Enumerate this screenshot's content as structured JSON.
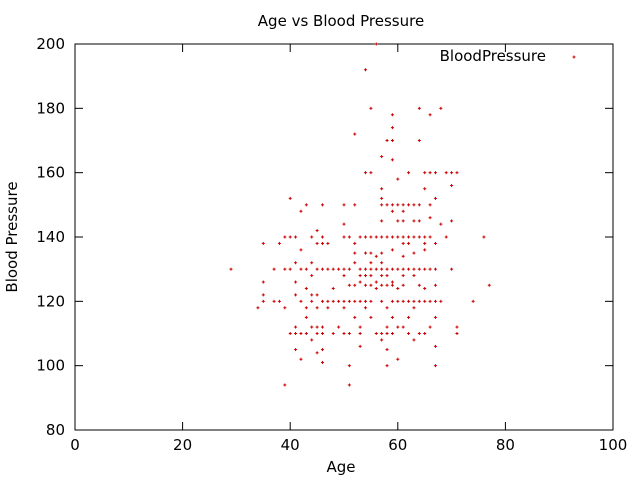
{
  "chart_data": {
    "type": "scatter",
    "title": "Age vs Blood Pressure",
    "xlabel": "Age",
    "ylabel": "Blood Pressure",
    "xlim": [
      0,
      100
    ],
    "ylim": [
      80,
      200
    ],
    "xticks": [
      0,
      20,
      40,
      60,
      80,
      100
    ],
    "yticks": [
      80,
      100,
      120,
      140,
      160,
      180,
      200
    ],
    "grid": false,
    "legend": "top-right",
    "marker_color": "#cc0000",
    "series": [
      {
        "name": "BloodPressure",
        "points": [
          [
            29,
            130
          ],
          [
            34,
            118
          ],
          [
            35,
            122
          ],
          [
            35,
            120
          ],
          [
            35,
            126
          ],
          [
            35,
            138
          ],
          [
            37,
            130
          ],
          [
            37,
            120
          ],
          [
            38,
            120
          ],
          [
            38,
            138
          ],
          [
            39,
            140
          ],
          [
            39,
            94
          ],
          [
            39,
            118
          ],
          [
            39,
            130
          ],
          [
            40,
            152
          ],
          [
            40,
            140
          ],
          [
            40,
            130
          ],
          [
            40,
            110
          ],
          [
            41,
            132
          ],
          [
            41,
            126
          ],
          [
            41,
            122
          ],
          [
            41,
            112
          ],
          [
            41,
            110
          ],
          [
            41,
            105
          ],
          [
            41,
            140
          ],
          [
            42,
            148
          ],
          [
            42,
            136
          ],
          [
            42,
            130
          ],
          [
            42,
            120
          ],
          [
            42,
            110
          ],
          [
            42,
            102
          ],
          [
            43,
            150
          ],
          [
            43,
            130
          ],
          [
            43,
            124
          ],
          [
            43,
            118
          ],
          [
            43,
            115
          ],
          [
            43,
            110
          ],
          [
            44,
            140
          ],
          [
            44,
            132
          ],
          [
            44,
            128
          ],
          [
            44,
            122
          ],
          [
            44,
            120
          ],
          [
            44,
            112
          ],
          [
            44,
            108
          ],
          [
            45,
            142
          ],
          [
            45,
            138
          ],
          [
            45,
            130
          ],
          [
            45,
            122
          ],
          [
            45,
            118
          ],
          [
            45,
            112
          ],
          [
            45,
            110
          ],
          [
            45,
            104
          ],
          [
            46,
            150
          ],
          [
            46,
            140
          ],
          [
            46,
            138
          ],
          [
            46,
            130
          ],
          [
            46,
            120
          ],
          [
            46,
            112
          ],
          [
            46,
            110
          ],
          [
            46,
            105
          ],
          [
            46,
            101
          ],
          [
            47,
            138
          ],
          [
            47,
            130
          ],
          [
            47,
            120
          ],
          [
            47,
            118
          ],
          [
            48,
            130
          ],
          [
            48,
            124
          ],
          [
            48,
            120
          ],
          [
            48,
            110
          ],
          [
            49,
            130
          ],
          [
            49,
            120
          ],
          [
            49,
            112
          ],
          [
            50,
            150
          ],
          [
            50,
            144
          ],
          [
            50,
            140
          ],
          [
            50,
            130
          ],
          [
            50,
            128
          ],
          [
            50,
            120
          ],
          [
            50,
            118
          ],
          [
            50,
            110
          ],
          [
            51,
            140
          ],
          [
            51,
            130
          ],
          [
            51,
            125
          ],
          [
            51,
            120
          ],
          [
            51,
            110
          ],
          [
            51,
            100
          ],
          [
            51,
            94
          ],
          [
            52,
            172
          ],
          [
            52,
            150
          ],
          [
            52,
            138
          ],
          [
            52,
            135
          ],
          [
            52,
            132
          ],
          [
            52,
            125
          ],
          [
            52,
            120
          ],
          [
            52,
            115
          ],
          [
            53,
            140
          ],
          [
            53,
            130
          ],
          [
            53,
            128
          ],
          [
            53,
            126
          ],
          [
            53,
            120
          ],
          [
            53,
            112
          ],
          [
            53,
            110
          ],
          [
            53,
            106
          ],
          [
            54,
            192
          ],
          [
            54,
            160
          ],
          [
            54,
            140
          ],
          [
            54,
            135
          ],
          [
            54,
            130
          ],
          [
            54,
            128
          ],
          [
            54,
            125
          ],
          [
            54,
            120
          ],
          [
            54,
            118
          ],
          [
            55,
            180
          ],
          [
            55,
            160
          ],
          [
            55,
            140
          ],
          [
            55,
            135
          ],
          [
            55,
            132
          ],
          [
            55,
            130
          ],
          [
            55,
            128
          ],
          [
            55,
            125
          ],
          [
            55,
            120
          ],
          [
            55,
            115
          ],
          [
            56,
            200
          ],
          [
            56,
            140
          ],
          [
            56,
            134
          ],
          [
            56,
            130
          ],
          [
            56,
            126
          ],
          [
            56,
            124
          ],
          [
            56,
            110
          ],
          [
            57,
            165
          ],
          [
            57,
            155
          ],
          [
            57,
            152
          ],
          [
            57,
            150
          ],
          [
            57,
            145
          ],
          [
            57,
            140
          ],
          [
            57,
            135
          ],
          [
            57,
            132
          ],
          [
            57,
            130
          ],
          [
            57,
            128
          ],
          [
            57,
            125
          ],
          [
            57,
            120
          ],
          [
            57,
            110
          ],
          [
            57,
            108
          ],
          [
            58,
            170
          ],
          [
            58,
            150
          ],
          [
            58,
            140
          ],
          [
            58,
            130
          ],
          [
            58,
            128
          ],
          [
            58,
            125
          ],
          [
            58,
            118
          ],
          [
            58,
            112
          ],
          [
            58,
            110
          ],
          [
            58,
            105
          ],
          [
            58,
            100
          ],
          [
            59,
            178
          ],
          [
            59,
            174
          ],
          [
            59,
            170
          ],
          [
            59,
            164
          ],
          [
            59,
            150
          ],
          [
            59,
            148
          ],
          [
            59,
            140
          ],
          [
            59,
            136
          ],
          [
            59,
            130
          ],
          [
            59,
            126
          ],
          [
            59,
            125
          ],
          [
            59,
            120
          ],
          [
            59,
            115
          ],
          [
            59,
            110
          ],
          [
            60,
            158
          ],
          [
            60,
            150
          ],
          [
            60,
            145
          ],
          [
            60,
            140
          ],
          [
            60,
            130
          ],
          [
            60,
            124
          ],
          [
            60,
            120
          ],
          [
            60,
            112
          ],
          [
            60,
            102
          ],
          [
            61,
            150
          ],
          [
            61,
            148
          ],
          [
            61,
            145
          ],
          [
            61,
            140
          ],
          [
            61,
            138
          ],
          [
            61,
            134
          ],
          [
            61,
            130
          ],
          [
            61,
            128
          ],
          [
            61,
            125
          ],
          [
            61,
            120
          ],
          [
            61,
            112
          ],
          [
            62,
            160
          ],
          [
            62,
            150
          ],
          [
            62,
            140
          ],
          [
            62,
            138
          ],
          [
            62,
            130
          ],
          [
            62,
            120
          ],
          [
            62,
            115
          ],
          [
            62,
            110
          ],
          [
            63,
            150
          ],
          [
            63,
            145
          ],
          [
            63,
            140
          ],
          [
            63,
            135
          ],
          [
            63,
            130
          ],
          [
            63,
            128
          ],
          [
            63,
            120
          ],
          [
            63,
            118
          ],
          [
            63,
            108
          ],
          [
            64,
            180
          ],
          [
            64,
            170
          ],
          [
            64,
            150
          ],
          [
            64,
            145
          ],
          [
            64,
            140
          ],
          [
            64,
            130
          ],
          [
            64,
            125
          ],
          [
            64,
            120
          ],
          [
            64,
            110
          ],
          [
            65,
            160
          ],
          [
            65,
            155
          ],
          [
            65,
            140
          ],
          [
            65,
            138
          ],
          [
            65,
            136
          ],
          [
            65,
            130
          ],
          [
            65,
            124
          ],
          [
            65,
            120
          ],
          [
            65,
            110
          ],
          [
            66,
            178
          ],
          [
            66,
            160
          ],
          [
            66,
            150
          ],
          [
            66,
            146
          ],
          [
            66,
            140
          ],
          [
            66,
            130
          ],
          [
            66,
            120
          ],
          [
            66,
            112
          ],
          [
            67,
            160
          ],
          [
            67,
            152
          ],
          [
            67,
            138
          ],
          [
            67,
            130
          ],
          [
            67,
            125
          ],
          [
            67,
            120
          ],
          [
            67,
            115
          ],
          [
            67,
            106
          ],
          [
            67,
            100
          ],
          [
            68,
            180
          ],
          [
            68,
            144
          ],
          [
            68,
            120
          ],
          [
            69,
            160
          ],
          [
            69,
            140
          ],
          [
            70,
            160
          ],
          [
            70,
            156
          ],
          [
            70,
            145
          ],
          [
            70,
            130
          ],
          [
            71,
            160
          ],
          [
            71,
            112
          ],
          [
            71,
            110
          ],
          [
            74,
            120
          ],
          [
            76,
            140
          ],
          [
            77,
            125
          ]
        ]
      }
    ]
  }
}
